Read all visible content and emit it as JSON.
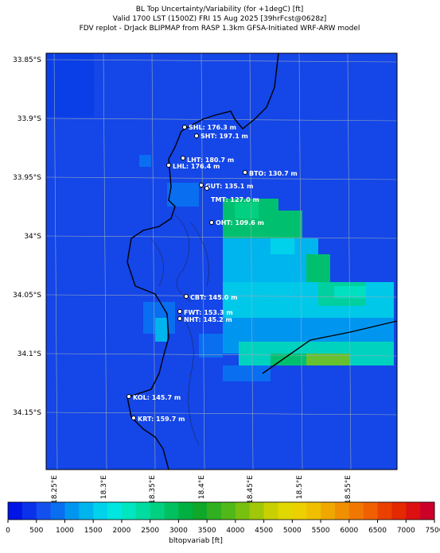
{
  "header": {
    "title": [
      "BL Top Uncertainty/Variability (for +1degC) [ft]",
      "Valid 1700 LST (1500Z) FRI 15 Aug 2025 [39hrFcst@0628z]",
      "FDV replot - DrJack BLIPMAP from RASP 1.3km GFSA-Initiated WRF-ARW model"
    ]
  },
  "map": {
    "lat_labels": [
      "33.85°S",
      "33.9°S",
      "33.95°S",
      "34°S",
      "34.05°S",
      "34.1°S",
      "34.15°S"
    ],
    "lon_labels": [
      "18.25°E",
      "18.3°E",
      "18.35°E",
      "18.4°E",
      "18.45°E",
      "18.5°E",
      "18.55°E"
    ],
    "stations": [
      "SHL: 176.3 m",
      "SHT: 197.1 m",
      "LHT: 180.7 m",
      "LHL: 176.4 m",
      "BTO: 130.7 m",
      "GUT: 135.1 m",
      "TMT: 127.0 m",
      "OHT: 109.6 m",
      "CBT: 145.0 m",
      "FWT: 153.3 m",
      "NHT: 145.2 m",
      "KOL: 145.7 m",
      "KRT: 159.7 m"
    ]
  },
  "colorbar": {
    "label": "bltopvariab [ft]",
    "lim": [
      0,
      7500
    ],
    "ticks": [
      0,
      500,
      1000,
      1500,
      2000,
      2500,
      3000,
      3500,
      4000,
      4500,
      5000,
      5500,
      6000,
      6500,
      7000,
      7500
    ],
    "colors": [
      "#0014e6",
      "#0a32eb",
      "#1450ee",
      "#0a6ef0",
      "#0096f0",
      "#00b4ee",
      "#00d2ec",
      "#00e6e0",
      "#00e6c0",
      "#00dca0",
      "#00d080",
      "#00c060",
      "#00b040",
      "#10a828",
      "#30b020",
      "#50b818",
      "#78c010",
      "#a0c808",
      "#c8d000",
      "#e0d800",
      "#ecd000",
      "#f0c000",
      "#f0a800",
      "#f09000",
      "#f07800",
      "#f06000",
      "#ea4000",
      "#e42800",
      "#dc1010",
      "#cc0028"
    ]
  }
}
